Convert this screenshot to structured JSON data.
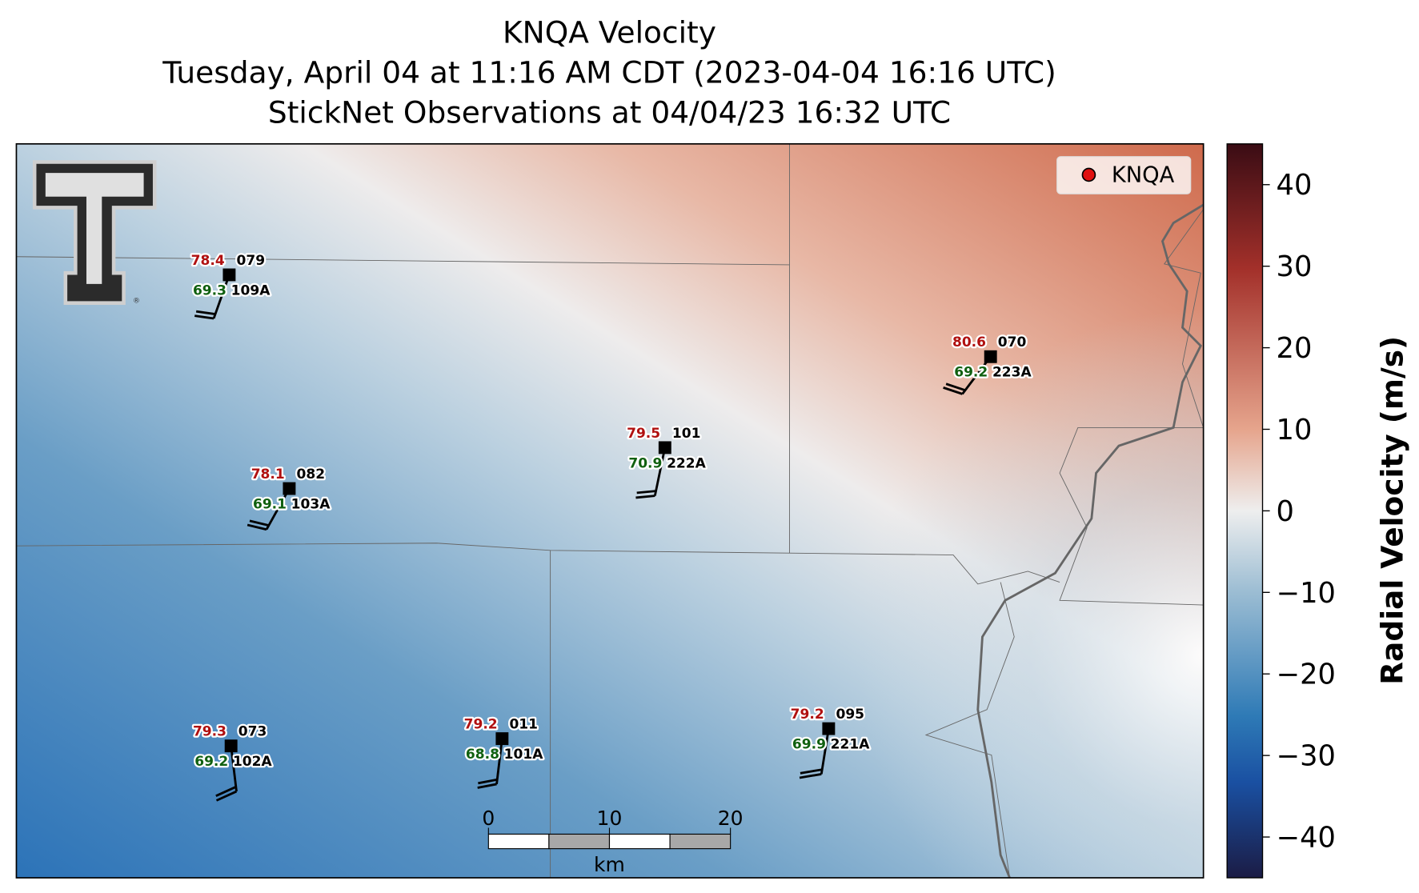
{
  "title": [
    "KNQA Velocity",
    "Tuesday, April 04 at 11:16 AM CDT (2023-04-04 16:16 UTC)",
    "StickNet Observations at 04/04/23 16:32 UTC"
  ],
  "logo_mark": "®",
  "legend": {
    "label": "KNQA",
    "color": "#e01010"
  },
  "stations": [
    {
      "temperature": 78.4,
      "code": "079",
      "dewpoint": 69.3,
      "id": "109A"
    },
    {
      "temperature": 80.6,
      "code": "070",
      "dewpoint": 69.2,
      "id": "223A"
    },
    {
      "temperature": 79.5,
      "code": "101",
      "dewpoint": 70.9,
      "id": "222A"
    },
    {
      "temperature": 78.1,
      "code": "082",
      "dewpoint": 69.1,
      "id": "103A"
    },
    {
      "temperature": 79.3,
      "code": "073",
      "dewpoint": 69.2,
      "id": "102A"
    },
    {
      "temperature": 79.2,
      "code": "011",
      "dewpoint": 68.8,
      "id": "101A"
    },
    {
      "temperature": 79.2,
      "code": "095",
      "dewpoint": 69.9,
      "id": "221A"
    }
  ],
  "scale_bar": {
    "ticks": [
      0,
      10,
      20
    ],
    "unit": "km"
  },
  "colorbar": {
    "label": "Radial Velocity (m/s)",
    "lim": [
      -45,
      45
    ],
    "ticks": [
      40,
      30,
      20,
      10,
      0,
      {
        "value": -10,
        "label": "−10"
      },
      {
        "value": -20,
        "label": "−20"
      },
      {
        "value": -30,
        "label": "−30"
      },
      {
        "value": -40,
        "label": "−40"
      }
    ]
  }
}
